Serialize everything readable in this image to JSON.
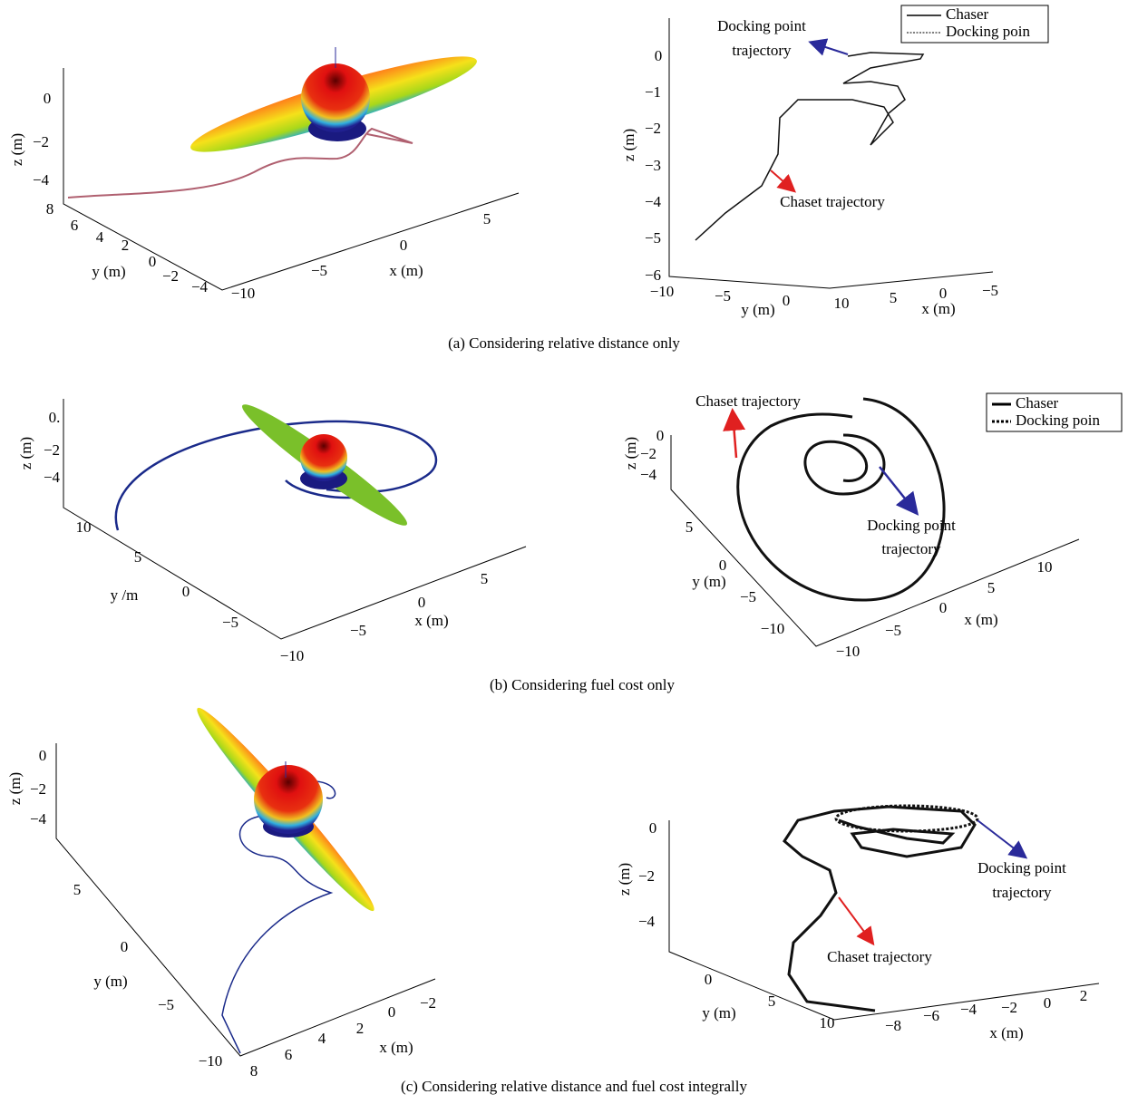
{
  "figure": {
    "panels": [
      {
        "z_label": "z (m)",
        "y_label": "y (m)",
        "x_label": "x (m)",
        "z_ticks": [
          "0",
          "−2",
          "−4"
        ],
        "y_ticks": [
          "8",
          "6",
          "4",
          "2",
          "0",
          "−2",
          "−4"
        ],
        "x_ticks": [
          "−10",
          "−5",
          "0",
          "5"
        ]
      },
      {
        "z_label": "z (m)",
        "y_label": "y (m)",
        "x_label": "x (m)",
        "z_ticks": [
          "0",
          "−1",
          "−2",
          "−3",
          "−4",
          "−5",
          "−6"
        ],
        "y_ticks": [
          "−10",
          "−5",
          "0"
        ],
        "x_ticks": [
          "10",
          "5",
          "0",
          "−5"
        ],
        "annotations": [
          [
            "Docking point",
            "trajectory"
          ],
          [
            "Chaset trajectory"
          ]
        ],
        "legend": [
          "Chaser",
          "Docking poin"
        ]
      },
      {
        "z_label": "z (m)",
        "y_label": "y /m",
        "x_label": "x (m)",
        "z_ticks": [
          "0.",
          "−2",
          "−4"
        ],
        "y_ticks": [
          "10",
          "5",
          "0",
          "−5"
        ],
        "x_ticks": [
          "−10",
          "−5",
          "0",
          "5"
        ]
      },
      {
        "z_label": "z (m)",
        "y_label": "y (m)",
        "x_label": "x (m)",
        "z_ticks": [
          "0",
          "−2",
          "−4"
        ],
        "y_ticks": [
          "5",
          "0",
          "−5",
          "−10"
        ],
        "x_ticks": [
          "−10",
          "−5",
          "0",
          "5",
          "10"
        ],
        "annotations": [
          [
            "Chaset trajectory"
          ],
          [
            "Docking point",
            "trajectory"
          ]
        ],
        "legend": [
          "Chaser",
          "Docking poin"
        ]
      },
      {
        "z_label": "z (m)",
        "y_label": "y (m)",
        "x_label": "x (m)",
        "z_ticks": [
          "0",
          "−2",
          "−4"
        ],
        "y_ticks": [
          "5",
          "0",
          "−5",
          "−10"
        ],
        "x_ticks": [
          "8",
          "6",
          "4",
          "2",
          "0",
          "−2"
        ]
      },
      {
        "z_label": "z (m)",
        "y_label": "y (m)",
        "x_label": "x (m)",
        "z_ticks": [
          "0",
          "−2",
          "−4"
        ],
        "y_ticks": [
          "0",
          "5",
          "10"
        ],
        "x_ticks": [
          "−8",
          "−6",
          "−4",
          "−2",
          "0",
          "2"
        ],
        "annotations": [
          [
            "Docking point",
            "trajectory"
          ],
          [
            "Chaset trajectory"
          ]
        ]
      }
    ],
    "captions": [
      "(a) Considering relative distance only",
      "(b) Considering fuel cost only",
      "(c) Considering relative distance and fuel cost integrally"
    ]
  }
}
